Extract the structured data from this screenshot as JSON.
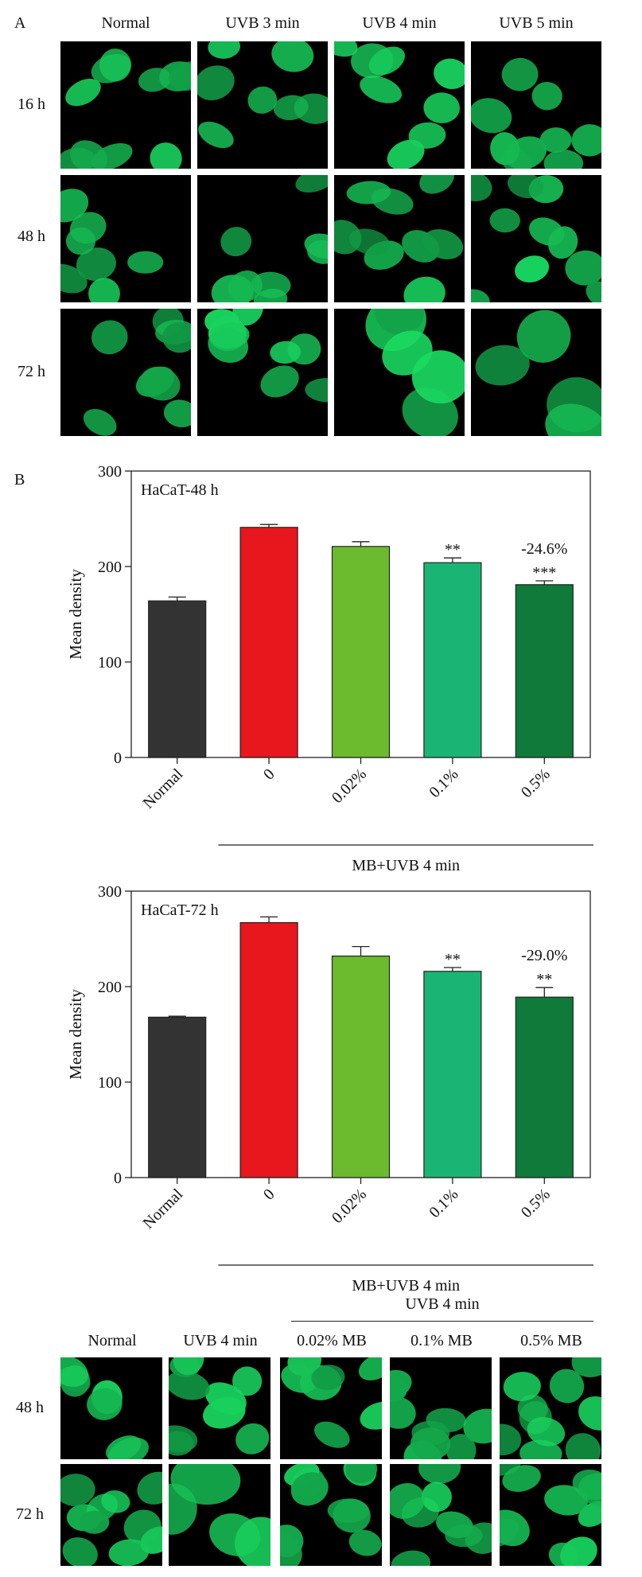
{
  "panel_a": {
    "letter": "A",
    "columns": [
      "Normal",
      "UVB 3 min",
      "UVB 4 min",
      "UVB 5 min"
    ],
    "rows": [
      "16 h",
      "48 h",
      "72 h"
    ]
  },
  "panel_b": {
    "letter": "B"
  },
  "chart_data": [
    {
      "type": "bar",
      "title": "HaCaT-48 h",
      "ylabel": "Mean density",
      "ylim": [
        0,
        300
      ],
      "yticks": [
        0,
        100,
        200,
        300
      ],
      "categories": [
        "Normal",
        "0",
        "0.02%",
        "0.1%",
        "0.5%"
      ],
      "values": [
        164,
        241,
        221,
        204,
        181
      ],
      "errors": [
        4,
        3,
        5,
        5,
        4
      ],
      "colors": [
        "#333333",
        "#e8161d",
        "#6cba2e",
        "#1ab574",
        "#0f7a3a"
      ],
      "significance": [
        "",
        "",
        "",
        "**",
        "***"
      ],
      "annotation": "-24.6%",
      "group_label": "MB+UVB 4 min"
    },
    {
      "type": "bar",
      "title": "HaCaT-72 h",
      "ylabel": "Mean density",
      "ylim": [
        0,
        300
      ],
      "yticks": [
        0,
        100,
        200,
        300
      ],
      "categories": [
        "Normal",
        "0",
        "0.02%",
        "0.1%",
        "0.5%"
      ],
      "values": [
        168,
        267,
        232,
        216,
        189
      ],
      "errors": [
        1,
        6,
        10,
        4,
        10
      ],
      "colors": [
        "#333333",
        "#e8161d",
        "#6cba2e",
        "#1ab574",
        "#0f7a3a"
      ],
      "significance": [
        "",
        "",
        "",
        "**",
        "**"
      ],
      "annotation": "-29.0%",
      "group_label": "MB+UVB 4 min"
    }
  ],
  "panel_c": {
    "group_header": "UVB 4 min",
    "columns": [
      "Normal",
      "UVB 4 min",
      "0.02% MB",
      "0.1% MB",
      "0.5% MB"
    ],
    "rows": [
      "48 h",
      "72 h"
    ]
  }
}
